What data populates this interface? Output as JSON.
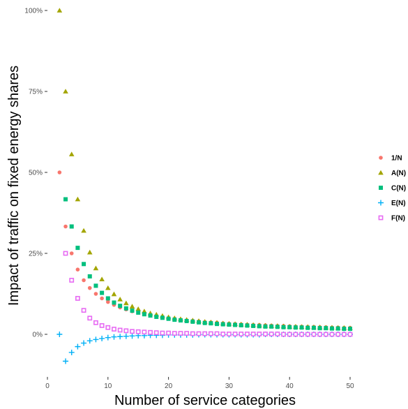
{
  "chart_data": {
    "type": "scatter",
    "title": "",
    "xlabel": "Number of service categories",
    "ylabel": "Impact of traffic on fixed energy shares",
    "xlim": [
      0,
      50
    ],
    "ylim": [
      -12,
      100
    ],
    "x_ticks": [
      0,
      10,
      20,
      30,
      40,
      50
    ],
    "y_ticks": [
      0,
      25,
      50,
      75,
      100
    ],
    "y_tick_labels": [
      "0%",
      "25%",
      "50%",
      "75%",
      "100%"
    ],
    "grid": false,
    "legend_position": "right",
    "series": [
      {
        "name": "1/N",
        "marker": "circle",
        "color": "#F8766D",
        "x": [
          2,
          3,
          4,
          5,
          6,
          7,
          8,
          9,
          10,
          11,
          12,
          13,
          14,
          15,
          16,
          17,
          18,
          19,
          20,
          21,
          22,
          23,
          24,
          25,
          26,
          27,
          28,
          29,
          30,
          31,
          32,
          33,
          34,
          35,
          36,
          37,
          38,
          39,
          40,
          41,
          42,
          43,
          44,
          45,
          46,
          47,
          48,
          49,
          50
        ],
        "y": [
          50,
          33.3,
          25,
          20,
          16.7,
          14.3,
          12.5,
          11.1,
          10,
          9.1,
          8.3,
          7.7,
          7.1,
          6.7,
          6.25,
          5.9,
          5.6,
          5.3,
          5,
          4.8,
          4.5,
          4.3,
          4.2,
          4,
          3.8,
          3.7,
          3.6,
          3.4,
          3.3,
          3.2,
          3.1,
          3,
          2.9,
          2.9,
          2.8,
          2.7,
          2.6,
          2.6,
          2.5,
          2.4,
          2.4,
          2.3,
          2.3,
          2.2,
          2.2,
          2.1,
          2.1,
          2,
          2
        ]
      },
      {
        "name": "A(N)",
        "marker": "triangle",
        "color": "#A3A500",
        "x": [
          2,
          3,
          4,
          5,
          6,
          7,
          8,
          9,
          10,
          11,
          12,
          13,
          14,
          15,
          16,
          17,
          18,
          19,
          20,
          21,
          22,
          23,
          24,
          25,
          26,
          27,
          28,
          29,
          30,
          31,
          32,
          33,
          34,
          35,
          36,
          37,
          38,
          39,
          40,
          41,
          42,
          43,
          44,
          45,
          46,
          47,
          48,
          49,
          50
        ],
        "y": [
          100,
          75,
          55.6,
          41.7,
          32,
          25.3,
          20.4,
          17,
          14.3,
          12.4,
          10.8,
          9.6,
          8.6,
          7.8,
          7.1,
          6.5,
          6.1,
          5.7,
          5.3,
          5,
          4.7,
          4.5,
          4.3,
          4.1,
          3.9,
          3.7,
          3.6,
          3.4,
          3.3,
          3.2,
          3.1,
          3,
          2.9,
          2.8,
          2.7,
          2.6,
          2.6,
          2.5,
          2.4,
          2.4,
          2.3,
          2.3,
          2.2,
          2.2,
          2.1,
          2.1,
          2,
          2,
          1.9
        ]
      },
      {
        "name": "C(N)",
        "marker": "square",
        "color": "#00BF7D",
        "x": [
          3,
          4,
          5,
          6,
          7,
          8,
          9,
          10,
          11,
          12,
          13,
          14,
          15,
          16,
          17,
          18,
          19,
          20,
          21,
          22,
          23,
          24,
          25,
          26,
          27,
          28,
          29,
          30,
          31,
          32,
          33,
          34,
          35,
          36,
          37,
          38,
          39,
          40,
          41,
          42,
          43,
          44,
          45,
          46,
          47,
          48,
          49,
          50
        ],
        "y": [
          41.7,
          33.3,
          26.7,
          21.7,
          17.9,
          15,
          12.8,
          11.1,
          9.8,
          8.8,
          8,
          7.3,
          6.7,
          6.2,
          5.8,
          5.4,
          5.1,
          4.8,
          4.5,
          4.3,
          4.1,
          3.9,
          3.7,
          3.5,
          3.4,
          3.2,
          3.1,
          3,
          2.9,
          2.8,
          2.7,
          2.6,
          2.5,
          2.4,
          2.4,
          2.3,
          2.2,
          2.2,
          2.1,
          2.1,
          2,
          2,
          1.9,
          1.9,
          1.8,
          1.8,
          1.7,
          1.7
        ]
      },
      {
        "name": "E(N)",
        "marker": "plus",
        "color": "#00B0F6",
        "x": [
          2,
          3,
          4,
          5,
          6,
          7,
          8,
          9,
          10,
          11,
          12,
          13,
          14,
          15,
          16,
          17,
          18,
          19,
          20,
          21,
          22,
          23,
          24,
          25,
          26,
          27,
          28,
          29,
          30,
          31,
          32,
          33,
          34,
          35,
          36,
          37,
          38,
          39,
          40,
          41,
          42,
          43,
          44,
          45,
          46,
          47,
          48,
          49,
          50
        ],
        "y": [
          0,
          -8.3,
          -5.6,
          -3.8,
          -2.7,
          -2,
          -1.6,
          -1.3,
          -1,
          -0.8,
          -0.7,
          -0.6,
          -0.5,
          -0.4,
          -0.4,
          -0.3,
          -0.3,
          -0.3,
          -0.2,
          -0.2,
          -0.2,
          -0.2,
          -0.2,
          -0.1,
          -0.1,
          -0.1,
          -0.1,
          -0.1,
          -0.1,
          -0.1,
          -0.1,
          -0.1,
          -0.1,
          -0.1,
          0,
          0,
          0,
          0,
          0,
          0,
          0,
          0,
          0,
          0,
          0,
          0,
          0,
          0,
          0
        ]
      },
      {
        "name": "F(N)",
        "marker": "square-open",
        "color": "#E76BF3",
        "x": [
          3,
          4,
          5,
          6,
          7,
          8,
          9,
          10,
          11,
          12,
          13,
          14,
          15,
          16,
          17,
          18,
          19,
          20,
          21,
          22,
          23,
          24,
          25,
          26,
          27,
          28,
          29,
          30,
          31,
          32,
          33,
          34,
          35,
          36,
          37,
          38,
          39,
          40,
          41,
          42,
          43,
          44,
          45,
          46,
          47,
          48,
          49,
          50
        ],
        "y": [
          25,
          16.7,
          11.1,
          7.4,
          5,
          3.6,
          2.7,
          2.1,
          1.6,
          1.3,
          1.1,
          0.9,
          0.8,
          0.7,
          0.6,
          0.5,
          0.4,
          0.4,
          0.3,
          0.3,
          0.3,
          0.2,
          0.2,
          0.2,
          0.2,
          0.2,
          0.1,
          0.1,
          0.1,
          0.1,
          0.1,
          0.1,
          0.1,
          0.1,
          0.1,
          0.1,
          0,
          0,
          0,
          0,
          0,
          0,
          0,
          0,
          0,
          0,
          0,
          0
        ]
      }
    ]
  }
}
